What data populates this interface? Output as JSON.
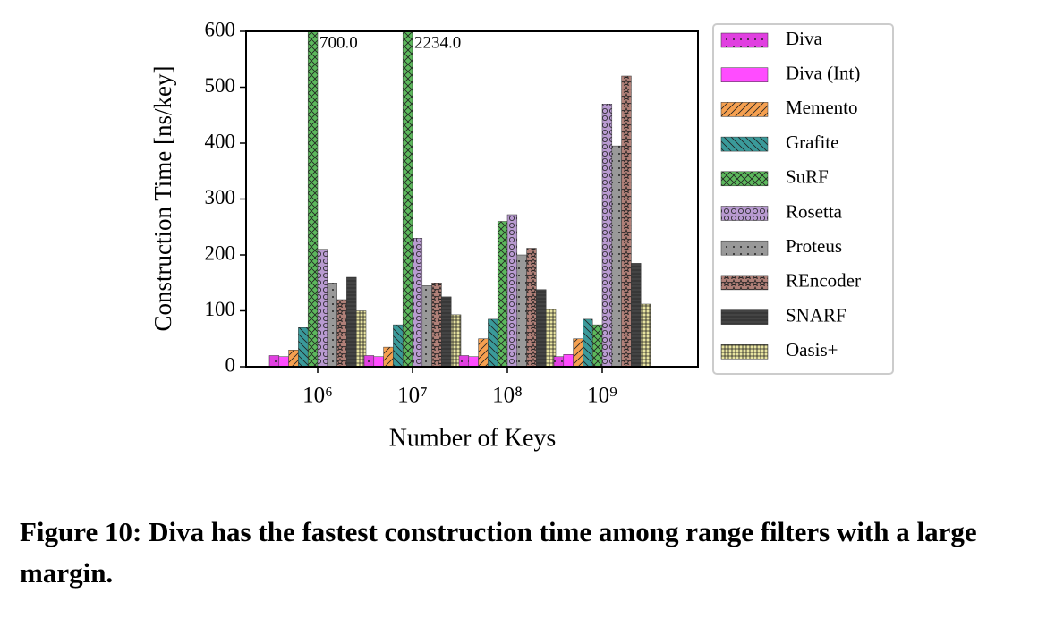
{
  "chart_data": {
    "type": "bar",
    "caption": "Figure 10: Diva has the fastest construction time among range filters with a large margin.",
    "xlabel": "Number of Keys",
    "ylabel": "Construction Time [ns/key]",
    "categories": [
      "10⁶",
      "10⁷",
      "10⁸",
      "10⁹"
    ],
    "ylim": [
      0,
      600
    ],
    "yticks": [
      0,
      100,
      200,
      300,
      400,
      500,
      600
    ],
    "legend": "outside-right",
    "series": [
      {
        "name": "Diva",
        "color": "#e040e0",
        "values": [
          20,
          20,
          20,
          18
        ]
      },
      {
        "name": "Diva (Int)",
        "color": "#ff4cff",
        "values": [
          18,
          18,
          18,
          22
        ]
      },
      {
        "name": "Memento",
        "color": "#f5a050",
        "values": [
          30,
          35,
          50,
          50
        ]
      },
      {
        "name": "Grafite",
        "color": "#3a9a9a",
        "values": [
          70,
          75,
          85,
          85
        ]
      },
      {
        "name": "SuRF",
        "color": "#5cb85c",
        "values": [
          700,
          2234,
          260,
          75
        ],
        "value_labels": [
          "700.0",
          "2234.0",
          null,
          null
        ]
      },
      {
        "name": "Rosetta",
        "color": "#b89ad0",
        "values": [
          210,
          230,
          272,
          470
        ]
      },
      {
        "name": "Proteus",
        "color": "#999999",
        "values": [
          150,
          145,
          200,
          395
        ]
      },
      {
        "name": "REncoder",
        "color": "#b08078",
        "values": [
          120,
          150,
          212,
          520
        ]
      },
      {
        "name": "SNARF",
        "color": "#444444",
        "values": [
          160,
          125,
          138,
          185
        ]
      },
      {
        "name": "Oasis+",
        "color": "#e8e4a0",
        "values": [
          100,
          93,
          103,
          112
        ]
      }
    ]
  }
}
